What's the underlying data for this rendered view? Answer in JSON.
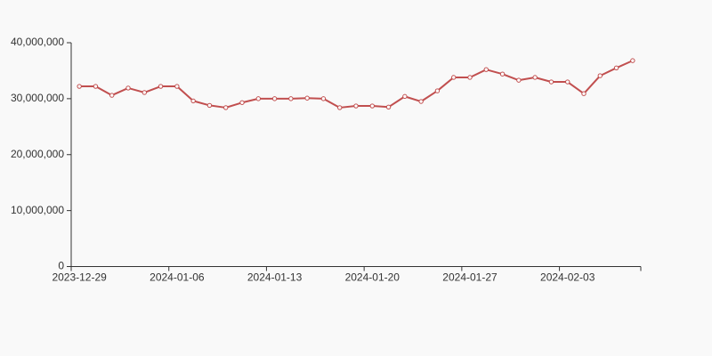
{
  "chart_data": {
    "type": "line",
    "categories": [
      "2023-12-29",
      null,
      null,
      null,
      null,
      null,
      "2024-01-06",
      null,
      null,
      null,
      null,
      null,
      "2024-01-13",
      null,
      null,
      null,
      null,
      null,
      "2024-01-20",
      null,
      null,
      null,
      null,
      null,
      "2024-01-27",
      null,
      null,
      null,
      null,
      null,
      "2024-02-03",
      null,
      null,
      null,
      null
    ],
    "series": [
      {
        "color": "#c14f4f",
        "values": [
          32200000,
          32200000,
          30600000,
          31900000,
          31100000,
          32200000,
          32200000,
          29600000,
          28800000,
          28400000,
          29300000,
          30000000,
          30000000,
          30000000,
          30100000,
          30000000,
          28400000,
          28700000,
          28700000,
          28500000,
          30400000,
          29500000,
          31400000,
          33800000,
          33800000,
          35200000,
          34400000,
          33300000,
          33800000,
          33000000,
          33000000,
          30900000,
          34100000,
          35500000,
          36800000
        ]
      }
    ],
    "ylim": [
      0,
      40000000
    ],
    "yticks": [
      0,
      {
        "value": 10000000,
        "label": "10,000,000"
      },
      {
        "value": 20000000,
        "label": "20,000,000"
      },
      {
        "value": 30000000,
        "label": "30,000,000"
      },
      {
        "value": 40000000,
        "label": "40,000,000"
      }
    ],
    "grid": false
  }
}
